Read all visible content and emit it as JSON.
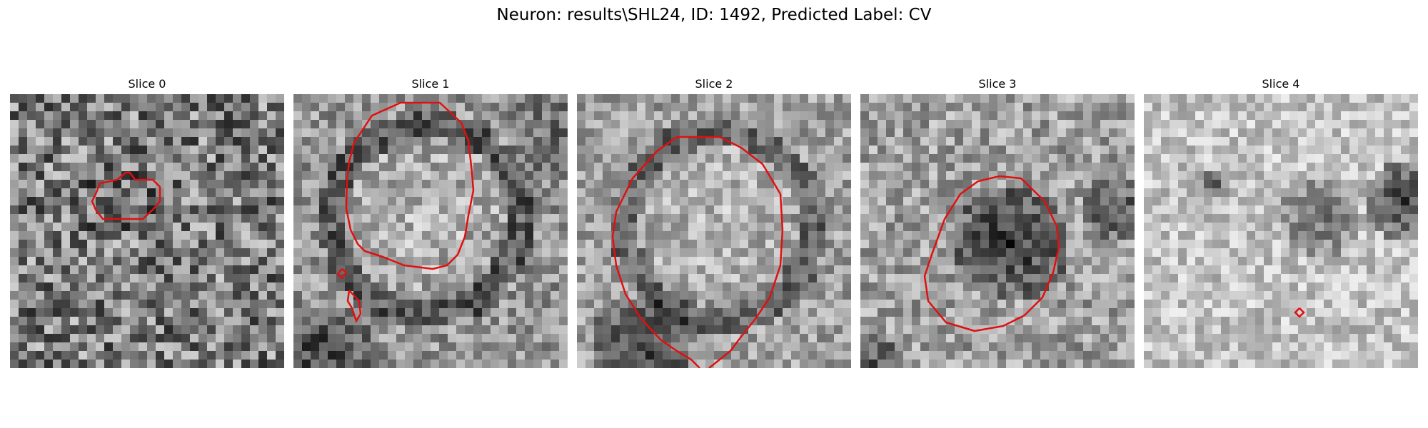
{
  "figure": {
    "title": "Neuron: results\\SHL24, ID: 1492, Predicted Label: CV",
    "colormap": "grayscale",
    "contour_color": "#e01010"
  },
  "panels": [
    {
      "title": "Slice 0"
    },
    {
      "title": "Slice 1"
    },
    {
      "title": "Slice 2"
    },
    {
      "title": "Slice 3"
    },
    {
      "title": "Slice 4"
    }
  ]
}
